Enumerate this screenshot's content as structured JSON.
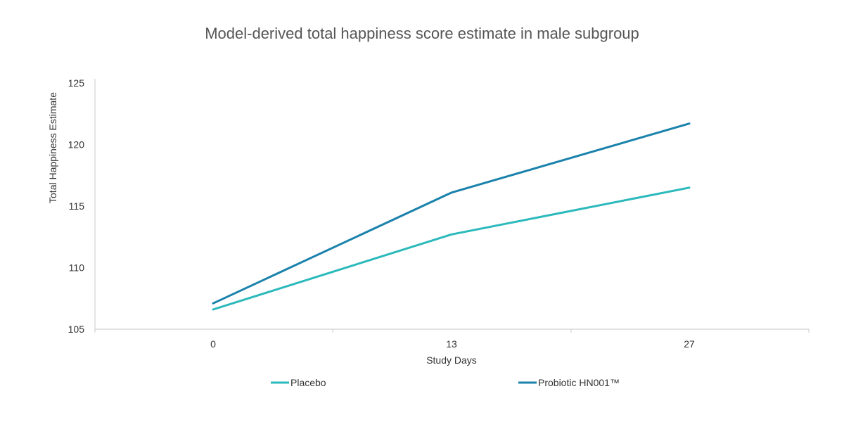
{
  "chart_data": {
    "type": "line",
    "title": "Model-derived total happiness score estimate in male subgroup",
    "xlabel": "Study Days",
    "ylabel": "Total Happiness Estimate",
    "categories": [
      "0",
      "13",
      "27"
    ],
    "ylim": [
      105,
      125
    ],
    "yticks": [
      105,
      110,
      115,
      120,
      125
    ],
    "grid": false,
    "legend_position": "bottom",
    "series": [
      {
        "name": "Placebo",
        "color": "#2bb9bc",
        "values": [
          106.6,
          112.7,
          116.5
        ]
      },
      {
        "name": "Probiotic HN001™",
        "color": "#1a82ab",
        "values": [
          107.1,
          116.1,
          121.7
        ]
      }
    ]
  },
  "colors": {
    "axis": "#c8c8c8",
    "text": "#333333",
    "title": "#555555"
  }
}
